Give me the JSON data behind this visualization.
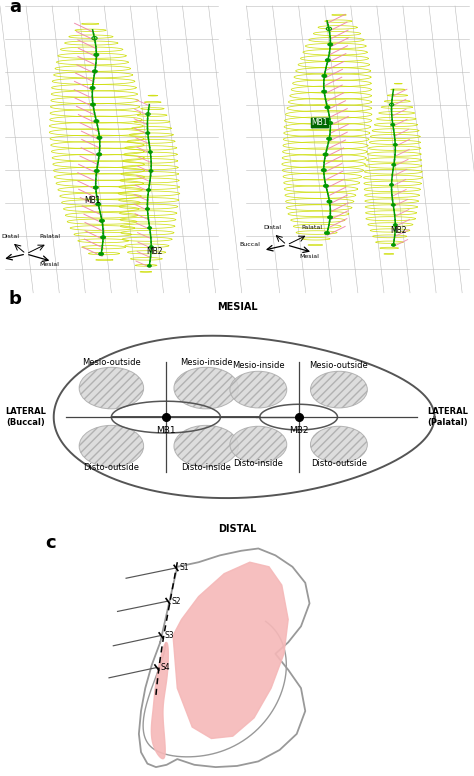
{
  "panel_a_label": "a",
  "panel_b_label": "b",
  "panel_c_label": "c",
  "panel_a_bg": "#e8e8e8",
  "wire_color": "#ccdd00",
  "canal_color": "#009900",
  "canal_open_color": "#88cc88",
  "pink_color": "#ee88aa",
  "mb1_box_color": "#006600",
  "panel_b_outline": "#555555",
  "panel_c_outline": "#999999",
  "panel_c_pulp": "#f5b8b8",
  "black": "#000000",
  "gray_circle": "#cccccc",
  "font_size_label": 13,
  "font_size_axis": 6,
  "font_size_quad": 6
}
